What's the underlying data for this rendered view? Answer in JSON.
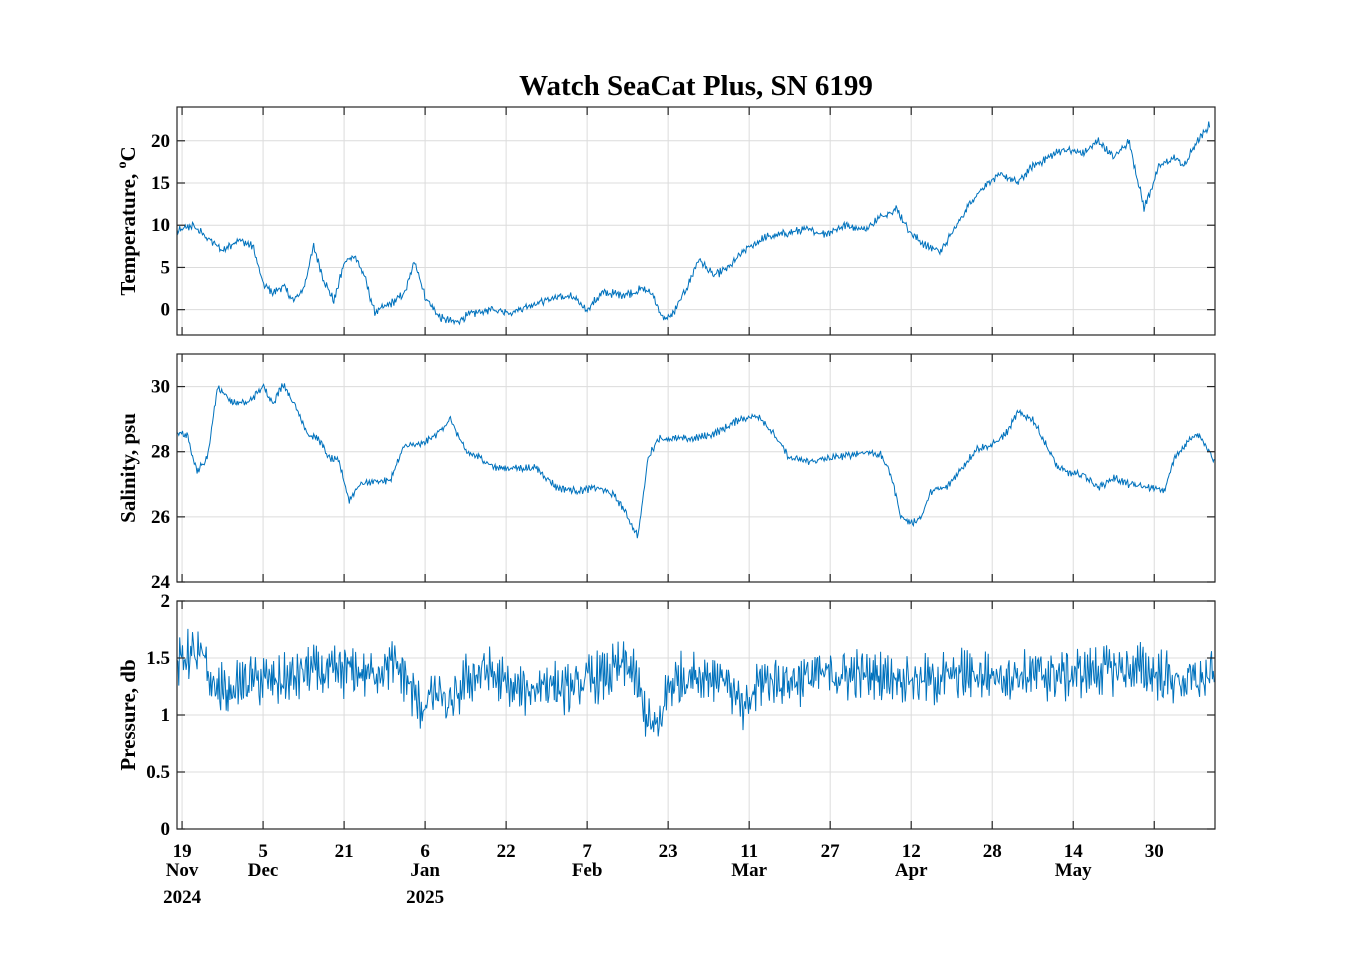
{
  "chart_data": {
    "type": "line",
    "title": "Watch SeaCat Plus, SN 6199",
    "x_ticks": [
      {
        "date": "2024-11-19",
        "day": "19",
        "month": "Nov",
        "year": "2024"
      },
      {
        "date": "2024-12-05",
        "day": "5",
        "month": "Dec",
        "year": ""
      },
      {
        "date": "2024-12-21",
        "day": "21",
        "month": "",
        "year": ""
      },
      {
        "date": "2025-01-06",
        "day": "6",
        "month": "Jan",
        "year": "2025"
      },
      {
        "date": "2025-01-22",
        "day": "22",
        "month": "",
        "year": ""
      },
      {
        "date": "2025-02-07",
        "day": "7",
        "month": "Feb",
        "year": ""
      },
      {
        "date": "2025-02-23",
        "day": "23",
        "month": "",
        "year": ""
      },
      {
        "date": "2025-03-11",
        "day": "11",
        "month": "Mar",
        "year": ""
      },
      {
        "date": "2025-03-27",
        "day": "27",
        "month": "",
        "year": ""
      },
      {
        "date": "2025-04-12",
        "day": "12",
        "month": "Apr",
        "year": ""
      },
      {
        "date": "2025-04-28",
        "day": "28",
        "month": "",
        "year": ""
      },
      {
        "date": "2025-05-14",
        "day": "14",
        "month": "May",
        "year": ""
      },
      {
        "date": "2025-05-30",
        "day": "30",
        "month": "",
        "year": ""
      }
    ],
    "xlim": [
      "2024-11-18",
      "2025-06-11"
    ],
    "grid": true,
    "color": "#0072BD",
    "panels": [
      {
        "ylabel": "Temperature, ",
        "ylabel_sup": "o",
        "ylabel_unit": "C",
        "ylim": [
          -3,
          24
        ],
        "yticks": [
          0,
          5,
          10,
          15,
          20
        ],
        "ytick_labels": [
          "0",
          "5",
          "10",
          "15",
          "20"
        ],
        "noise": 0.35,
        "series": {
          "x": [
            "2024-11-18",
            "2024-11-21",
            "2024-11-24",
            "2024-11-27",
            "2024-11-30",
            "2024-12-03",
            "2024-12-05",
            "2024-12-07",
            "2024-12-09",
            "2024-12-11",
            "2024-12-13",
            "2024-12-15",
            "2024-12-17",
            "2024-12-19",
            "2024-12-21",
            "2024-12-23",
            "2024-12-25",
            "2024-12-27",
            "2024-12-29",
            "2024-12-31",
            "2025-01-02",
            "2025-01-04",
            "2025-01-06",
            "2025-01-09",
            "2025-01-12",
            "2025-01-15",
            "2025-01-19",
            "2025-01-23",
            "2025-01-28",
            "2025-02-01",
            "2025-02-04",
            "2025-02-07",
            "2025-02-10",
            "2025-02-14",
            "2025-02-16",
            "2025-02-18",
            "2025-02-20",
            "2025-02-22",
            "2025-02-24",
            "2025-02-27",
            "2025-03-01",
            "2025-03-04",
            "2025-03-07",
            "2025-03-10",
            "2025-03-14",
            "2025-03-18",
            "2025-03-22",
            "2025-03-26",
            "2025-03-30",
            "2025-04-03",
            "2025-04-06",
            "2025-04-09",
            "2025-04-12",
            "2025-04-15",
            "2025-04-18",
            "2025-04-21",
            "2025-04-24",
            "2025-04-27",
            "2025-04-30",
            "2025-05-03",
            "2025-05-06",
            "2025-05-09",
            "2025-05-12",
            "2025-05-16",
            "2025-05-19",
            "2025-05-22",
            "2025-05-25",
            "2025-05-28",
            "2025-05-31",
            "2025-06-03",
            "2025-06-05",
            "2025-06-07",
            "2025-06-09",
            "2025-06-10"
          ],
          "y": [
            9.2,
            10,
            8.5,
            7,
            8.3,
            7.5,
            3.0,
            2.0,
            2.8,
            1.0,
            2.5,
            7.5,
            3.5,
            1.0,
            5.5,
            6.5,
            4,
            -0.3,
            0.3,
            1,
            2,
            5.8,
            1.5,
            -1,
            -1.5,
            -0.5,
            0,
            -0.3,
            0.8,
            1.5,
            1.5,
            0,
            2,
            1.8,
            2,
            2.5,
            1.8,
            -1.2,
            -0.5,
            3,
            6,
            4,
            5,
            7,
            8.5,
            9,
            9.5,
            9,
            10,
            9.5,
            11,
            12,
            9,
            7.5,
            7,
            10,
            13,
            15,
            16,
            15,
            17,
            18,
            19,
            18.5,
            20,
            18,
            20,
            12,
            17,
            18,
            17,
            19.5,
            21,
            22
          ]
        }
      },
      {
        "ylabel": "Salinity, psu",
        "ylabel_sup": "",
        "ylabel_unit": "",
        "ylim": [
          24,
          31
        ],
        "yticks": [
          24,
          26,
          28,
          30
        ],
        "ytick_labels": [
          "24",
          "26",
          "28",
          "30"
        ],
        "noise": 0.08,
        "series": {
          "x": [
            "2024-11-18",
            "2024-11-20",
            "2024-11-22",
            "2024-11-24",
            "2024-11-26",
            "2024-11-29",
            "2024-12-02",
            "2024-12-05",
            "2024-12-07",
            "2024-12-09",
            "2024-12-12",
            "2024-12-14",
            "2024-12-16",
            "2024-12-18",
            "2024-12-20",
            "2024-12-22",
            "2024-12-24",
            "2024-12-27",
            "2024-12-30",
            "2025-01-02",
            "2025-01-05",
            "2025-01-08",
            "2025-01-11",
            "2025-01-14",
            "2025-01-17",
            "2025-01-20",
            "2025-01-24",
            "2025-01-28",
            "2025-02-01",
            "2025-02-05",
            "2025-02-09",
            "2025-02-12",
            "2025-02-14",
            "2025-02-17",
            "2025-02-18",
            "2025-02-19",
            "2025-02-21",
            "2025-02-24",
            "2025-02-28",
            "2025-03-03",
            "2025-03-06",
            "2025-03-09",
            "2025-03-13",
            "2025-03-16",
            "2025-03-19",
            "2025-03-23",
            "2025-03-27",
            "2025-03-31",
            "2025-04-03",
            "2025-04-06",
            "2025-04-08",
            "2025-04-10",
            "2025-04-12",
            "2025-04-14",
            "2025-04-16",
            "2025-04-19",
            "2025-04-22",
            "2025-04-25",
            "2025-04-28",
            "2025-05-01",
            "2025-05-03",
            "2025-05-06",
            "2025-05-08",
            "2025-05-11",
            "2025-05-14",
            "2025-05-16",
            "2025-05-19",
            "2025-05-22",
            "2025-05-25",
            "2025-05-29",
            "2025-06-01",
            "2025-06-03",
            "2025-06-06",
            "2025-06-08",
            "2025-06-10",
            "2025-06-11"
          ],
          "y": [
            28.6,
            28.5,
            27.4,
            27.8,
            30.0,
            29.5,
            29.5,
            30.0,
            29.5,
            30.1,
            29.2,
            28.5,
            28.4,
            27.8,
            27.7,
            26.5,
            27.0,
            27.1,
            27.1,
            28.2,
            28.2,
            28.5,
            29.0,
            28.0,
            27.8,
            27.5,
            27.5,
            27.5,
            26.9,
            26.8,
            26.9,
            26.7,
            26.3,
            25.4,
            26.5,
            27.8,
            28.4,
            28.4,
            28.4,
            28.5,
            28.7,
            29.0,
            29.1,
            28.5,
            27.8,
            27.7,
            27.8,
            27.9,
            28.0,
            27.9,
            27.3,
            26.0,
            25.8,
            26.0,
            26.8,
            26.9,
            27.5,
            28.1,
            28.2,
            28.6,
            29.2,
            29.0,
            28.4,
            27.5,
            27.3,
            27.3,
            26.9,
            27.2,
            27.0,
            26.9,
            26.8,
            27.8,
            28.4,
            28.5,
            28.0,
            27.6
          ]
        }
      },
      {
        "ylabel": "Pressure, db",
        "ylabel_sup": "",
        "ylabel_unit": "",
        "ylim": [
          0,
          2
        ],
        "yticks": [
          0,
          0.5,
          1,
          1.5,
          2
        ],
        "ytick_labels": [
          "0",
          "0.5",
          "1",
          "1.5",
          "2"
        ],
        "noise": 0.16,
        "series": {
          "x": [
            "2024-11-18",
            "2024-11-20",
            "2024-11-23",
            "2024-11-25",
            "2024-11-28",
            "2024-12-02",
            "2024-12-06",
            "2024-12-10",
            "2024-12-14",
            "2024-12-18",
            "2024-12-22",
            "2024-12-26",
            "2024-12-30",
            "2025-01-02",
            "2025-01-05",
            "2025-01-08",
            "2025-01-11",
            "2025-01-14",
            "2025-01-18",
            "2025-01-22",
            "2025-01-26",
            "2025-01-30",
            "2025-02-03",
            "2025-02-07",
            "2025-02-11",
            "2025-02-15",
            "2025-02-17",
            "2025-02-19",
            "2025-02-21",
            "2025-02-23",
            "2025-02-27",
            "2025-03-03",
            "2025-03-06",
            "2025-03-08",
            "2025-03-10",
            "2025-03-13",
            "2025-03-18",
            "2025-03-25",
            "2025-04-01",
            "2025-04-08",
            "2025-04-15",
            "2025-04-22",
            "2025-04-29",
            "2025-05-06",
            "2025-05-13",
            "2025-05-20",
            "2025-05-24",
            "2025-05-27",
            "2025-05-31",
            "2025-06-04",
            "2025-06-08",
            "2025-06-11"
          ],
          "y": [
            1.4,
            1.55,
            1.5,
            1.25,
            1.2,
            1.3,
            1.3,
            1.3,
            1.4,
            1.35,
            1.4,
            1.35,
            1.45,
            1.35,
            1.05,
            1.2,
            1.05,
            1.3,
            1.4,
            1.25,
            1.2,
            1.3,
            1.2,
            1.3,
            1.35,
            1.45,
            1.25,
            0.95,
            0.85,
            1.25,
            1.35,
            1.35,
            1.35,
            1.2,
            1.0,
            1.3,
            1.3,
            1.35,
            1.35,
            1.35,
            1.3,
            1.35,
            1.35,
            1.35,
            1.35,
            1.4,
            1.4,
            1.4,
            1.35,
            1.3,
            1.3,
            1.35
          ]
        }
      }
    ]
  }
}
